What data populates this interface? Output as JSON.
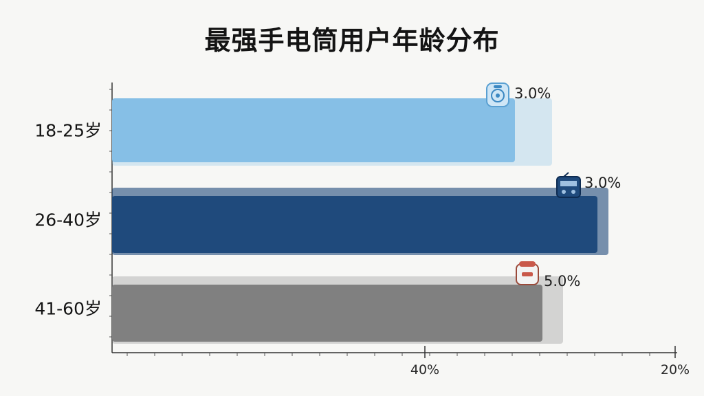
{
  "chart_data": {
    "type": "bar",
    "orientation": "horizontal",
    "title": "最强手电筒用户年龄分布",
    "categories": [
      "18-25岁",
      "26-40岁",
      "41-60岁"
    ],
    "series": [
      {
        "values": [
          3.0,
          3.0,
          5.0
        ],
        "value_labels": [
          "3.0%",
          "3.0%",
          "5.0%"
        ],
        "colors": [
          "#86bfe6",
          "#1f4a7c",
          "#808080"
        ],
        "icons": [
          "smartphone-speaker-icon",
          "radio-device-icon",
          "rice-cooker-icon"
        ]
      }
    ],
    "x_ticks": [
      "40%",
      "20%"
    ],
    "grid": false,
    "legend": "none"
  }
}
